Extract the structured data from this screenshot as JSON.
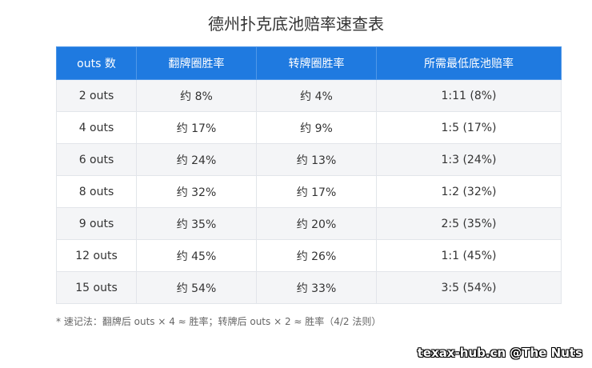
{
  "title": "德州扑克底池赔率速查表",
  "table": {
    "headers": [
      "outs 数",
      "翻牌圈胜率",
      "转牌圈胜率",
      "所需最低底池赔率"
    ],
    "rows": [
      [
        "2 outs",
        "约 8%",
        "约 4%",
        "1:11 (8%)"
      ],
      [
        "4 outs",
        "约 17%",
        "约 9%",
        "1:5  (17%)"
      ],
      [
        "6 outs",
        "约 24%",
        "约 13%",
        "1:3  (24%)"
      ],
      [
        "8 outs",
        "约 32%",
        "约 17%",
        "1:2  (32%)"
      ],
      [
        "9 outs",
        "约 35%",
        "约 20%",
        "2:5  (35%)"
      ],
      [
        "12 outs",
        "约 45%",
        "约 26%",
        "1:1  (45%)"
      ],
      [
        "15 outs",
        "约 54%",
        "约 33%",
        "3:5  (54%)"
      ]
    ]
  },
  "note": "* 速记法：翻牌后 outs × 4 ≈ 胜率；转牌后 outs × 2 ≈ 胜率（4/2 法则）",
  "watermark": "texax-hub.cn @The Nuts"
}
